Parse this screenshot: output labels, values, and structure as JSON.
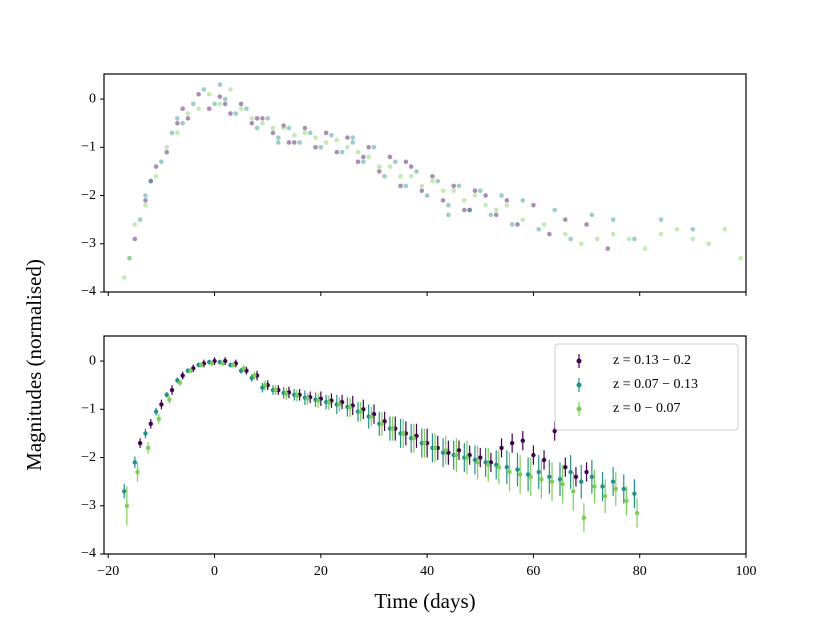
{
  "chart_data": [
    {
      "type": "scatter",
      "xlim": [
        -20.8,
        100
      ],
      "ylim": [
        -4,
        0.52
      ],
      "xticks": [
        -20,
        0,
        20,
        40,
        60,
        80,
        100
      ],
      "yticks": [
        {
          "value": -4,
          "label": "−4"
        },
        {
          "value": -3,
          "label": "−3"
        },
        {
          "value": -2,
          "label": "−2"
        },
        {
          "value": -1,
          "label": "−1"
        },
        0
      ],
      "show_xtick_labels": false,
      "opacity": 0.45,
      "series": [
        {
          "color": "#440154",
          "x": [
            -15,
            -13,
            -11,
            -9,
            -7,
            -5,
            -3,
            -1,
            1,
            3,
            5,
            7,
            9,
            11,
            13,
            15,
            17,
            19,
            21,
            23,
            25,
            27,
            29,
            31,
            33,
            35,
            37,
            39,
            41,
            43,
            45,
            47,
            49,
            51,
            53,
            55,
            57,
            60,
            63,
            66,
            70,
            74,
            -12,
            -6,
            2,
            8,
            14,
            28,
            36,
            48
          ],
          "values": [
            -2.9,
            -2.1,
            -1.4,
            -1.1,
            -0.5,
            -0.4,
            0.1,
            -0.2,
            0.05,
            -0.3,
            -0.1,
            -0.5,
            -0.4,
            -0.7,
            -0.55,
            -0.9,
            -0.6,
            -1.0,
            -0.7,
            -1.1,
            -0.8,
            -1.3,
            -1.0,
            -1.5,
            -1.2,
            -1.8,
            -1.4,
            -1.9,
            -1.6,
            -2.1,
            -1.8,
            -2.3,
            -1.9,
            -2.0,
            -2.4,
            -2.1,
            -2.6,
            -2.2,
            -2.8,
            -2.5,
            -2.6,
            -3.1,
            -1.7,
            -0.2,
            -0.1,
            -0.4,
            -0.9,
            -1.2,
            -1.3,
            -2.3
          ]
        },
        {
          "color": "#21918c",
          "x": [
            -16,
            -14,
            -12,
            -10,
            -8,
            -6,
            -4,
            -2,
            0,
            2,
            4,
            6,
            8,
            10,
            12,
            14,
            16,
            18,
            20,
            22,
            24,
            26,
            28,
            30,
            32,
            34,
            36,
            38,
            40,
            42,
            44,
            46,
            48,
            50,
            52,
            54,
            56,
            58,
            61,
            64,
            67,
            71,
            75,
            79,
            84,
            90,
            -13,
            -7,
            1,
            12,
            26,
            44
          ],
          "values": [
            -3.3,
            -2.5,
            -1.7,
            -1.3,
            -0.7,
            -0.5,
            -0.1,
            0.2,
            -0.1,
            0.0,
            -0.3,
            -0.2,
            -0.6,
            -0.4,
            -0.8,
            -0.6,
            -0.9,
            -0.7,
            -1.0,
            -0.75,
            -1.1,
            -0.9,
            -1.3,
            -1.0,
            -1.6,
            -1.3,
            -1.8,
            -1.5,
            -2.0,
            -1.7,
            -2.2,
            -1.8,
            -2.3,
            -1.9,
            -2.4,
            -2.0,
            -2.6,
            -2.1,
            -2.7,
            -2.3,
            -2.9,
            -2.4,
            -2.5,
            -2.9,
            -2.5,
            -2.7,
            -2.0,
            -0.4,
            0.3,
            -0.9,
            -0.8,
            -2.4
          ]
        },
        {
          "color": "#7ad151",
          "x": [
            -17,
            -16,
            -15,
            -13,
            -11,
            -9,
            -7,
            -5,
            -3,
            -1,
            1,
            3,
            5,
            7,
            9,
            11,
            13,
            15,
            17,
            19,
            21,
            23,
            25,
            27,
            29,
            31,
            33,
            35,
            37,
            39,
            41,
            43,
            45,
            47,
            49,
            51,
            53,
            55,
            58,
            62,
            66,
            69,
            72,
            75,
            78,
            81,
            84,
            87,
            90,
            93,
            96,
            99
          ],
          "values": [
            -3.7,
            -3.3,
            -2.6,
            -2.2,
            -1.6,
            -1.0,
            -0.7,
            -0.3,
            -0.2,
            0.1,
            -0.1,
            0.2,
            -0.2,
            -0.4,
            -0.5,
            -0.6,
            -0.6,
            -0.75,
            -0.7,
            -0.8,
            -0.9,
            -0.85,
            -1.0,
            -1.1,
            -1.2,
            -1.4,
            -1.4,
            -1.6,
            -1.6,
            -1.8,
            -1.7,
            -1.9,
            -1.9,
            -2.1,
            -2.0,
            -2.2,
            -2.3,
            -2.2,
            -2.5,
            -2.6,
            -2.8,
            -3.0,
            -2.9,
            -2.8,
            -2.9,
            -3.1,
            -2.8,
            -2.7,
            -2.9,
            -3.0,
            -2.7,
            -3.3
          ]
        }
      ]
    },
    {
      "type": "errorbar",
      "xlabel": "Time (days)",
      "ylabel": "Magnitudes (normalised)",
      "xlim": [
        -20.8,
        100
      ],
      "ylim": [
        -4,
        0.52
      ],
      "xticks": [
        {
          "value": -20,
          "label": "−20"
        },
        0,
        20,
        40,
        60,
        80,
        100
      ],
      "yticks": [
        {
          "value": -4,
          "label": "−4"
        },
        {
          "value": -3,
          "label": "−3"
        },
        {
          "value": -2,
          "label": "−2"
        },
        {
          "value": -1,
          "label": "−1"
        },
        0
      ],
      "show_xtick_labels": true,
      "legend": "upper right",
      "series": [
        {
          "name": "z = 0.13 − 0.2",
          "color": "#440154",
          "x": [
            -14,
            -12,
            -10,
            -8,
            -6,
            -4,
            -2,
            0,
            2,
            4,
            6,
            8,
            10,
            12,
            14,
            16,
            18,
            20,
            22,
            24,
            26,
            28,
            30,
            32,
            34,
            36,
            38,
            40,
            42,
            44,
            46,
            48,
            50,
            52,
            54,
            56,
            58,
            60,
            62,
            64,
            66,
            68,
            70
          ],
          "values": [
            -1.7,
            -1.3,
            -0.9,
            -0.6,
            -0.3,
            -0.15,
            -0.05,
            0,
            0,
            -0.05,
            -0.2,
            -0.3,
            -0.5,
            -0.6,
            -0.65,
            -0.7,
            -0.75,
            -0.78,
            -0.82,
            -0.85,
            -0.92,
            -1.0,
            -1.1,
            -1.25,
            -1.4,
            -1.5,
            -1.55,
            -1.7,
            -1.8,
            -1.9,
            -1.85,
            -1.95,
            -2.0,
            -2.1,
            -1.8,
            -1.7,
            -1.65,
            -1.95,
            -2.05,
            -1.45,
            -2.2,
            -2.4,
            -2.3
          ],
          "errors": [
            0.1,
            0.1,
            0.1,
            0.1,
            0.08,
            0.08,
            0.08,
            0.08,
            0.08,
            0.08,
            0.08,
            0.1,
            0.1,
            0.1,
            0.12,
            0.12,
            0.12,
            0.15,
            0.15,
            0.15,
            0.2,
            0.2,
            0.2,
            0.2,
            0.25,
            0.25,
            0.25,
            0.3,
            0.25,
            0.25,
            0.2,
            0.2,
            0.2,
            0.2,
            0.2,
            0.2,
            0.2,
            0.2,
            0.2,
            0.2,
            0.2,
            0.2,
            0.2
          ]
        },
        {
          "name": "z = 0.07 − 0.13",
          "color": "#21918c",
          "x": [
            -17,
            -15,
            -13,
            -11,
            -9,
            -7,
            -5,
            -3,
            -1,
            1,
            3,
            5,
            7,
            9,
            11,
            13,
            15,
            17,
            19,
            21,
            23,
            25,
            27,
            29,
            31,
            33,
            35,
            37,
            39,
            41,
            43,
            45,
            47,
            49,
            51,
            53,
            55,
            57,
            59,
            61,
            63,
            65,
            67,
            69,
            71,
            73,
            75,
            77,
            79
          ],
          "values": [
            -2.7,
            -2.1,
            -1.5,
            -1.05,
            -0.7,
            -0.4,
            -0.2,
            -0.08,
            -0.02,
            -0.02,
            -0.08,
            -0.2,
            -0.35,
            -0.55,
            -0.6,
            -0.66,
            -0.7,
            -0.76,
            -0.8,
            -0.85,
            -0.9,
            -0.95,
            -1.05,
            -1.15,
            -1.3,
            -1.4,
            -1.5,
            -1.6,
            -1.7,
            -1.8,
            -1.9,
            -1.95,
            -2.0,
            -2.05,
            -2.1,
            -2.15,
            -2.2,
            -2.25,
            -2.35,
            -2.3,
            -2.4,
            -2.45,
            -2.3,
            -2.5,
            -2.4,
            -2.6,
            -2.5,
            -2.65,
            -2.75
          ],
          "errors": [
            0.15,
            0.12,
            0.1,
            0.08,
            0.06,
            0.06,
            0.05,
            0.05,
            0.05,
            0.05,
            0.05,
            0.06,
            0.08,
            0.1,
            0.1,
            0.12,
            0.12,
            0.15,
            0.15,
            0.15,
            0.2,
            0.2,
            0.2,
            0.25,
            0.25,
            0.25,
            0.3,
            0.3,
            0.3,
            0.3,
            0.3,
            0.3,
            0.3,
            0.3,
            0.3,
            0.3,
            0.35,
            0.35,
            0.35,
            0.35,
            0.35,
            0.35,
            0.35,
            0.35,
            0.35,
            0.3,
            0.3,
            0.3,
            0.3
          ]
        },
        {
          "name": "z = 0 − 0.07",
          "color": "#7ad151",
          "x": [
            -16.5,
            -14.5,
            -12.5,
            -10.5,
            -8.5,
            -6.5,
            -4.5,
            -2.5,
            -0.5,
            1.5,
            3.5,
            5.5,
            7.5,
            9.5,
            11.5,
            13.5,
            15.5,
            17.5,
            19.5,
            21.5,
            23.5,
            25.5,
            27.5,
            29.5,
            31.5,
            33.5,
            35.5,
            37.5,
            39.5,
            41.5,
            43.5,
            45.5,
            47.5,
            49.5,
            51.5,
            53.5,
            55.5,
            57.5,
            59.5,
            61.5,
            63.5,
            65.5,
            67.5,
            69.5,
            71.5,
            73.5,
            75.5,
            77.5,
            79.5
          ],
          "values": [
            -3.0,
            -2.3,
            -1.8,
            -1.2,
            -0.8,
            -0.45,
            -0.2,
            -0.08,
            -0.05,
            -0.05,
            -0.08,
            -0.15,
            -0.3,
            -0.5,
            -0.6,
            -0.68,
            -0.72,
            -0.78,
            -0.82,
            -0.86,
            -0.9,
            -0.96,
            -1.05,
            -1.15,
            -1.3,
            -1.4,
            -1.5,
            -1.6,
            -1.7,
            -1.8,
            -1.85,
            -1.95,
            -2.0,
            -2.1,
            -2.15,
            -2.2,
            -2.3,
            -2.35,
            -2.4,
            -2.45,
            -2.5,
            -2.55,
            -2.7,
            -3.25,
            -2.6,
            -2.8,
            -2.65,
            -2.9,
            -3.15
          ],
          "errors": [
            0.4,
            0.2,
            0.12,
            0.1,
            0.08,
            0.06,
            0.05,
            0.05,
            0.05,
            0.05,
            0.05,
            0.06,
            0.08,
            0.1,
            0.1,
            0.12,
            0.12,
            0.12,
            0.15,
            0.15,
            0.15,
            0.2,
            0.2,
            0.2,
            0.25,
            0.25,
            0.3,
            0.3,
            0.3,
            0.3,
            0.3,
            0.35,
            0.35,
            0.35,
            0.35,
            0.35,
            0.4,
            0.4,
            0.4,
            0.4,
            0.4,
            0.4,
            0.4,
            0.3,
            0.35,
            0.35,
            0.35,
            0.3,
            0.3
          ]
        }
      ]
    }
  ]
}
